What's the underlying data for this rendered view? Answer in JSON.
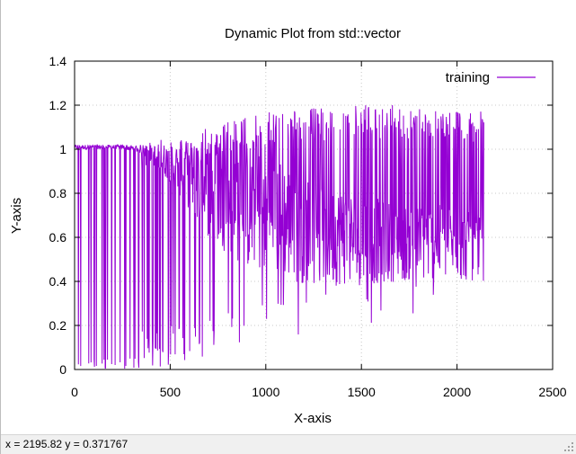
{
  "window": {
    "status_text": "x = 2195.82 y = 0.371767"
  },
  "colors": {
    "series": "#9400d3",
    "grid": "#c8c8c8",
    "axis": "#000000",
    "status_bar": "#f0f0f0"
  },
  "chart_data": {
    "type": "line",
    "title": "Dynamic Plot from std::vector",
    "xlabel": "X-axis",
    "ylabel": "Y-axis",
    "xlim": [
      0,
      2500
    ],
    "ylim": [
      0,
      1.4
    ],
    "xticks": [
      0,
      500,
      1000,
      1500,
      2000,
      2500
    ],
    "yticks": [
      0,
      0.2,
      0.4,
      0.6,
      0.8,
      1,
      1.2,
      1.4
    ],
    "xtick_labels": [
      "0",
      "500",
      "1000",
      "1500",
      "2000",
      "2500"
    ],
    "ytick_labels": [
      "0",
      "0.2",
      "0.4",
      "0.6",
      "0.8",
      "1",
      "1.2",
      "1.4"
    ],
    "grid": true,
    "legend_position": "top-right",
    "series": [
      {
        "name": "training",
        "color": "#9400d3",
        "x_start": 0,
        "x_end": 2140,
        "envelope": [
          {
            "x": 0,
            "low": 0.0,
            "high": 1.02,
            "dense_low": 1.0,
            "dense_high": 1.02
          },
          {
            "x": 100,
            "low": 0.0,
            "high": 1.02,
            "dense_low": 1.0,
            "dense_high": 1.02
          },
          {
            "x": 250,
            "low": 0.0,
            "high": 1.02,
            "dense_low": 1.0,
            "dense_high": 1.02
          },
          {
            "x": 350,
            "low": 0.0,
            "high": 1.03,
            "dense_low": 0.98,
            "dense_high": 1.02
          },
          {
            "x": 500,
            "low": 0.0,
            "high": 1.05,
            "dense_low": 0.85,
            "dense_high": 1.03
          },
          {
            "x": 700,
            "low": 0.05,
            "high": 1.1,
            "dense_low": 0.6,
            "dense_high": 1.05
          },
          {
            "x": 900,
            "low": 0.1,
            "high": 1.15,
            "dense_low": 0.45,
            "dense_high": 1.05
          },
          {
            "x": 1100,
            "low": 0.15,
            "high": 1.18,
            "dense_low": 0.4,
            "dense_high": 0.95
          },
          {
            "x": 1300,
            "low": 0.15,
            "high": 1.19,
            "dense_low": 0.38,
            "dense_high": 0.85
          },
          {
            "x": 1500,
            "low": 0.15,
            "high": 1.2,
            "dense_low": 0.38,
            "dense_high": 0.8
          },
          {
            "x": 1700,
            "low": 0.2,
            "high": 1.2,
            "dense_low": 0.4,
            "dense_high": 0.75
          },
          {
            "x": 1900,
            "low": 0.25,
            "high": 1.19,
            "dense_low": 0.4,
            "dense_high": 0.75
          },
          {
            "x": 2140,
            "low": 0.3,
            "high": 1.17,
            "dense_low": 0.4,
            "dense_high": 0.7
          }
        ]
      }
    ]
  }
}
